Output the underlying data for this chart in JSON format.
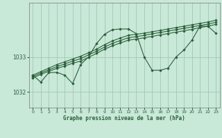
{
  "title": "Graphe pression niveau de la mer (hPa)",
  "background_color": "#c8e8d8",
  "grid_color": "#9dbfad",
  "line_color": "#2a5e38",
  "hours": [
    0,
    1,
    2,
    3,
    4,
    5,
    6,
    7,
    8,
    9,
    10,
    11,
    12,
    13,
    14,
    15,
    16,
    17,
    18,
    19,
    20,
    21,
    22,
    23
  ],
  "series_main": [
    1032.48,
    1032.28,
    1032.55,
    1032.56,
    1032.48,
    1032.24,
    1032.78,
    1033.0,
    1033.38,
    1033.65,
    1033.78,
    1033.8,
    1033.8,
    1033.67,
    1033.0,
    1032.62,
    1032.62,
    1032.68,
    1033.0,
    1033.2,
    1033.48,
    1033.88,
    1033.88,
    1033.68
  ],
  "series_line1": [
    1032.48,
    1032.58,
    1032.68,
    1032.78,
    1032.86,
    1032.94,
    1033.02,
    1033.12,
    1033.22,
    1033.35,
    1033.46,
    1033.54,
    1033.62,
    1033.65,
    1033.68,
    1033.72,
    1033.76,
    1033.8,
    1033.84,
    1033.88,
    1033.92,
    1033.96,
    1034.0,
    1034.05
  ],
  "series_line2": [
    1032.44,
    1032.54,
    1032.63,
    1032.72,
    1032.8,
    1032.88,
    1032.95,
    1033.06,
    1033.16,
    1033.28,
    1033.39,
    1033.47,
    1033.55,
    1033.58,
    1033.62,
    1033.66,
    1033.7,
    1033.74,
    1033.78,
    1033.82,
    1033.86,
    1033.9,
    1033.94,
    1033.99
  ],
  "series_line3": [
    1032.4,
    1032.5,
    1032.59,
    1032.67,
    1032.74,
    1032.82,
    1032.88,
    1032.99,
    1033.1,
    1033.22,
    1033.32,
    1033.4,
    1033.48,
    1033.51,
    1033.55,
    1033.59,
    1033.63,
    1033.67,
    1033.71,
    1033.75,
    1033.79,
    1033.84,
    1033.88,
    1033.93
  ],
  "ylim": [
    1031.55,
    1034.55
  ],
  "yticks": [
    1032,
    1033
  ],
  "xlim": [
    -0.5,
    23.5
  ],
  "xticks": [
    0,
    1,
    2,
    3,
    4,
    5,
    6,
    7,
    8,
    9,
    10,
    11,
    12,
    13,
    14,
    15,
    16,
    17,
    18,
    19,
    20,
    21,
    22,
    23
  ]
}
